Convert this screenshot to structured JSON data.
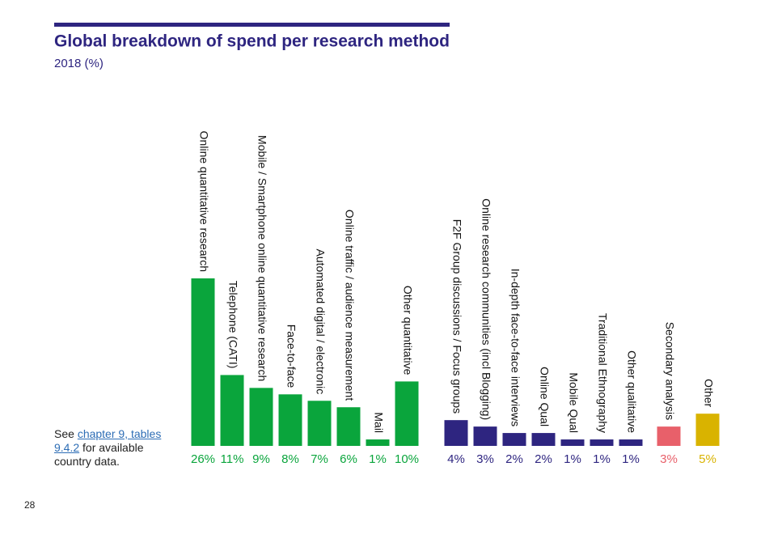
{
  "chart_data": {
    "type": "bar",
    "title": "Global breakdown of spend per research method",
    "subtitle": "2018 (%)",
    "categories": [
      "Online quantitative research",
      "Telephone (CATI)",
      "Mobile / Smartphone online quantitative research",
      "Face-to-face",
      "Automated digital / electronic",
      "Online traffic / audience measurement",
      "Mail",
      "Other quantitative",
      "F2F Group discussions / Focus groups",
      "Online research communities (incl Blogging)",
      "In-depth face-to-face interviews",
      "Online Qual",
      "Mobile Qual",
      "Traditional Ethnography",
      "Other qualitative",
      "Secondary analysis",
      "Other"
    ],
    "values": [
      26,
      11,
      9,
      8,
      7,
      6,
      1,
      10,
      4,
      3,
      2,
      2,
      1,
      1,
      1,
      3,
      5
    ],
    "value_labels": [
      "26%",
      "11%",
      "9%",
      "8%",
      "7%",
      "6%",
      "1%",
      "10%",
      "4%",
      "3%",
      "2%",
      "2%",
      "1%",
      "1%",
      "1%",
      "3%",
      "5%"
    ],
    "colors": [
      "#0aa53c",
      "#0aa53c",
      "#0aa53c",
      "#0aa53c",
      "#0aa53c",
      "#0aa53c",
      "#0aa53c",
      "#0aa53c",
      "#2e2580",
      "#2e2580",
      "#2e2580",
      "#2e2580",
      "#2e2580",
      "#2e2580",
      "#2e2580",
      "#e8606a",
      "#d9b300"
    ]
  },
  "note": {
    "prefix": "See",
    "link": "chapter 9, tables 9.4.2",
    "suffix": "for available country data."
  },
  "page_number": "28"
}
